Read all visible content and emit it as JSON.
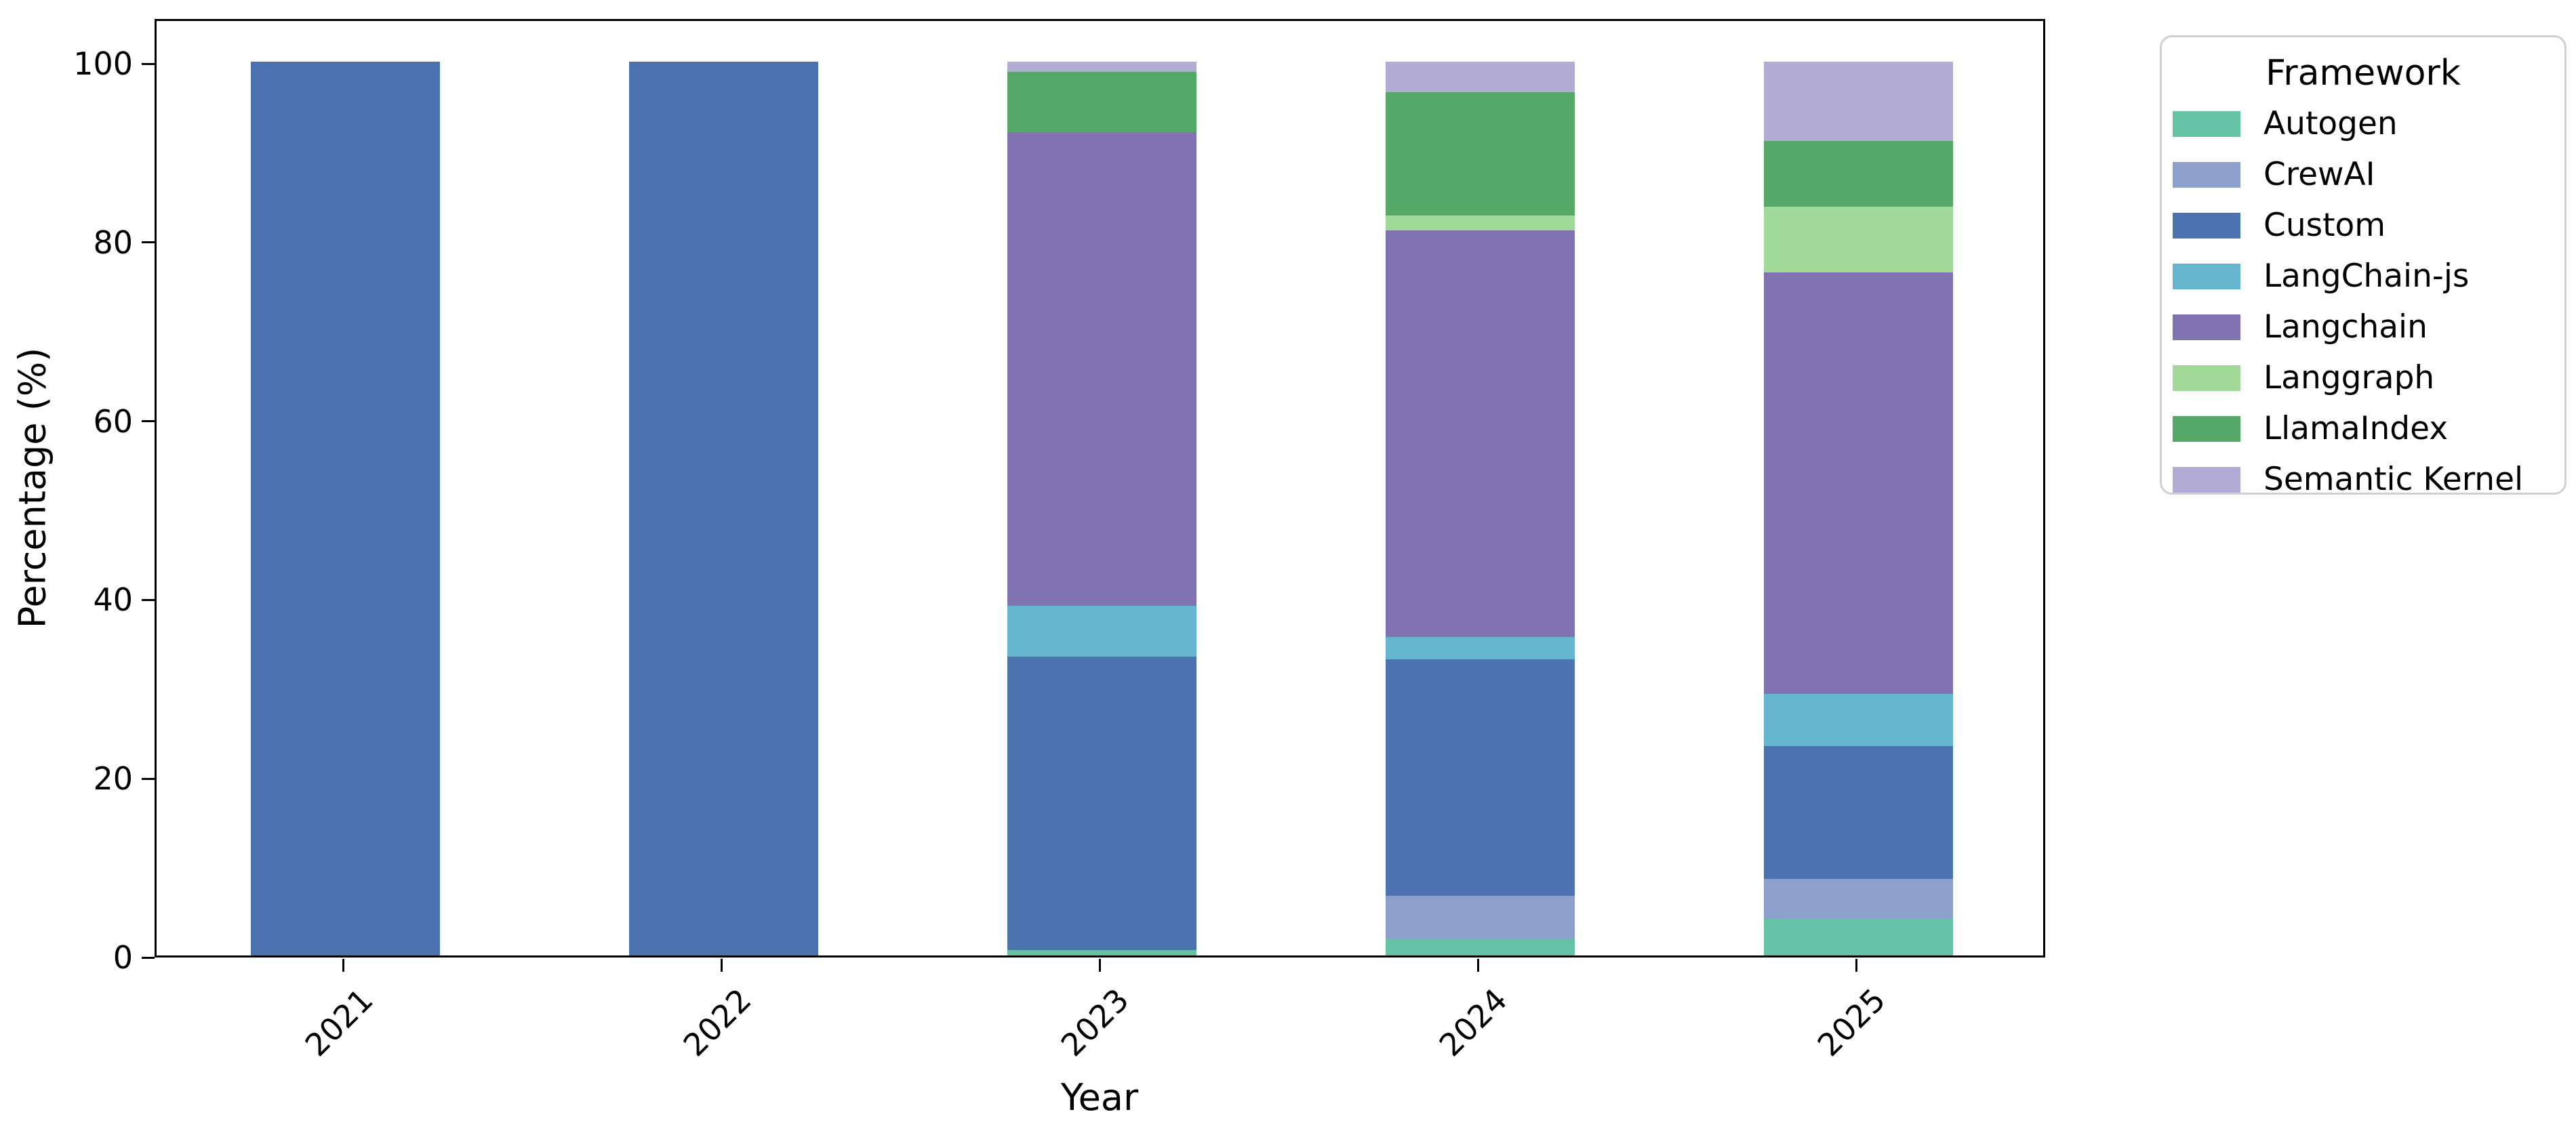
{
  "figure": {
    "background": "#ffffff",
    "spine_color": "#000000",
    "legend_border_color": "#d0d0d0"
  },
  "chart_data": {
    "type": "bar",
    "stacked": true,
    "normalized": "percent",
    "title": "",
    "xlabel": "Year",
    "ylabel": "Percentage (%)",
    "legend_title": "Framework",
    "legend_position": "outside upper right",
    "grid": false,
    "ylim": [
      0,
      105
    ],
    "yticks": [
      0,
      20,
      40,
      60,
      80,
      100
    ],
    "categories": [
      "2021",
      "2022",
      "2023",
      "2024",
      "2025"
    ],
    "series": [
      {
        "name": "Autogen",
        "color": "#66c2a5",
        "values": [
          0,
          0,
          0.6,
          1.8,
          4.2
        ]
      },
      {
        "name": "CrewAI",
        "color": "#8da0cb",
        "values": [
          0,
          0,
          0,
          4.9,
          4.4
        ]
      },
      {
        "name": "Custom",
        "color": "#4c72b0",
        "values": [
          100,
          100,
          32.8,
          26.4,
          14.8
        ]
      },
      {
        "name": "LangChain-js",
        "color": "#64b5cd",
        "values": [
          0,
          0,
          5.7,
          2.5,
          5.9
        ]
      },
      {
        "name": "Langchain",
        "color": "#8172b2",
        "values": [
          0,
          0,
          53.0,
          45.5,
          47.1
        ]
      },
      {
        "name": "Langgraph",
        "color": "#a1d99b",
        "values": [
          0,
          0,
          0,
          1.7,
          7.4
        ]
      },
      {
        "name": "LlamaIndex",
        "color": "#55a868",
        "values": [
          0,
          0,
          6.8,
          13.8,
          7.3
        ]
      },
      {
        "name": "Semantic Kernel",
        "color": "#b2abd6",
        "values": [
          0,
          0,
          1.1,
          3.4,
          8.9
        ]
      }
    ]
  }
}
